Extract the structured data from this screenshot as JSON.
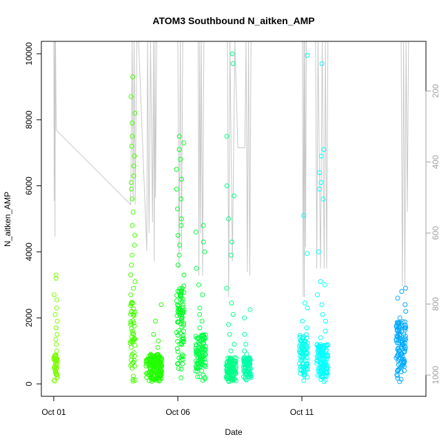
{
  "chart_data": {
    "type": "scatter",
    "title": "ATOM3 Southbound N_aitken_AMP",
    "xlabel": "Date",
    "ylabel": "N_aitken_AMP",
    "x_range_days": [
      0.0,
      14.5
    ],
    "x_ticks": [
      {
        "label": "Oct 01",
        "day": 0
      },
      {
        "label": "Oct 06",
        "day": 5
      },
      {
        "label": "Oct 11",
        "day": 10
      }
    ],
    "ylim": [
      0,
      10000
    ],
    "y_ticks": [
      0,
      2000,
      4000,
      6000,
      8000,
      10000
    ],
    "y2_ticks": [
      200,
      400,
      600,
      800,
      1000
    ],
    "y2_range": [
      60,
      1060
    ],
    "y2_reversed": true,
    "pressure_line_color": "#c8c8c8",
    "clusters": [
      {
        "start": 0.0,
        "end": 0.15,
        "color": "#7cfc00",
        "base_top": 900,
        "tail": [
          1000,
          1200,
          1350,
          1500,
          1700,
          1900,
          2100,
          2300,
          2550,
          2700,
          3200,
          3300
        ]
      },
      {
        "start": 3.08,
        "end": 3.28,
        "color": "#44ff00",
        "base_top": 2600,
        "tail": [
          2700,
          2900,
          3100,
          3300,
          3600,
          3900,
          4200,
          4500,
          4800,
          5200,
          5600,
          5900,
          6100,
          6300,
          6600,
          6900,
          7200,
          7500,
          7900,
          8200,
          8700,
          9300
        ]
      },
      {
        "start": 3.72,
        "end": 4.35,
        "color": "#22ff00",
        "base_top": 900,
        "tail": [
          1100,
          1300,
          1500,
          1900,
          2400
        ]
      },
      {
        "start": 4.95,
        "end": 5.25,
        "color": "#00ff22",
        "base_top": 3000,
        "tail": [
          3300,
          3600,
          3900,
          4200,
          4500,
          4800,
          5000,
          5300,
          5600,
          5900,
          6200,
          6500,
          6800,
          7100,
          7300,
          7500
        ]
      },
      {
        "start": 5.72,
        "end": 6.12,
        "color": "#00ff44",
        "base_top": 1500,
        "tail": [
          1700,
          1900,
          2100,
          2300,
          2700,
          3000,
          3500,
          4000,
          4300,
          4600,
          4800
        ]
      },
      {
        "start": 6.95,
        "end": 7.35,
        "color": "#00ff88",
        "base_top": 800,
        "tail": [
          1000,
          1200,
          1500,
          1800,
          2100,
          2450,
          2900,
          3900,
          4300,
          5000,
          5700,
          6000,
          7500,
          9700,
          10000
        ]
      },
      {
        "start": 7.65,
        "end": 7.95,
        "color": "#00ffaa",
        "base_top": 800,
        "tail": [
          900,
          1000,
          1200,
          1500,
          2000,
          2250
        ]
      },
      {
        "start": 9.9,
        "end": 10.22,
        "color": "#00ffee",
        "base_top": 1500,
        "tail": [
          1700,
          1900,
          2300,
          2450,
          3950,
          5100,
          9950
        ]
      },
      {
        "start": 10.6,
        "end": 11.05,
        "color": "#00ffff",
        "base_top": 1200,
        "tail": [
          1400,
          1600,
          1900,
          2100,
          2400,
          2700,
          3000,
          3100,
          4000,
          5600,
          5900,
          6100,
          6400,
          6900,
          7100,
          9700
        ]
      },
      {
        "start": 13.8,
        "end": 14.2,
        "color": "#00aaff",
        "base_top": 1900,
        "tail": [
          2000,
          2200,
          2400,
          2600,
          2800,
          2900
        ]
      }
    ],
    "pressure_profile": [
      [
        0.0,
        60
      ],
      [
        0.02,
        510
      ],
      [
        0.04,
        60
      ],
      [
        0.05,
        610
      ],
      [
        0.07,
        60
      ],
      [
        0.1,
        310
      ],
      [
        3.1,
        520
      ],
      [
        3.16,
        60
      ],
      [
        3.2,
        510
      ],
      [
        3.24,
        60
      ],
      [
        3.28,
        520
      ],
      [
        3.35,
        60
      ],
      [
        3.42,
        60
      ],
      [
        3.75,
        650
      ],
      [
        3.78,
        60
      ],
      [
        3.84,
        600
      ],
      [
        3.9,
        60
      ],
      [
        3.98,
        570
      ],
      [
        4.02,
        60
      ],
      [
        4.05,
        680
      ],
      [
        4.08,
        60
      ],
      [
        4.1,
        500
      ],
      [
        4.15,
        60
      ],
      [
        5.0,
        60
      ],
      [
        5.05,
        700
      ],
      [
        5.1,
        60
      ],
      [
        5.15,
        650
      ],
      [
        5.2,
        60
      ],
      [
        5.82,
        60
      ],
      [
        5.85,
        720
      ],
      [
        5.88,
        60
      ],
      [
        5.92,
        600
      ],
      [
        5.95,
        60
      ],
      [
        6.0,
        720
      ],
      [
        6.05,
        60
      ],
      [
        7.0,
        60
      ],
      [
        7.05,
        780
      ],
      [
        7.1,
        60
      ],
      [
        7.2,
        680
      ],
      [
        7.3,
        60
      ],
      [
        7.42,
        360
      ],
      [
        7.7,
        360
      ],
      [
        7.75,
        60
      ],
      [
        7.8,
        710
      ],
      [
        7.85,
        60
      ],
      [
        7.9,
        720
      ],
      [
        7.95,
        60
      ],
      [
        10.02,
        60
      ],
      [
        10.05,
        780
      ],
      [
        10.08,
        60
      ],
      [
        10.1,
        780
      ],
      [
        10.12,
        60
      ],
      [
        10.15,
        640
      ],
      [
        10.18,
        60
      ],
      [
        10.55,
        60
      ],
      [
        10.6,
        700
      ],
      [
        10.65,
        60
      ],
      [
        10.75,
        700
      ],
      [
        10.82,
        60
      ],
      [
        10.9,
        700
      ],
      [
        10.95,
        60
      ],
      [
        11.0,
        700
      ],
      [
        11.05,
        60
      ],
      [
        14.0,
        60
      ],
      [
        14.05,
        750
      ],
      [
        14.1,
        60
      ],
      [
        14.15,
        750
      ],
      [
        14.2,
        60
      ],
      [
        14.25,
        540
      ],
      [
        14.3,
        60
      ]
    ]
  }
}
